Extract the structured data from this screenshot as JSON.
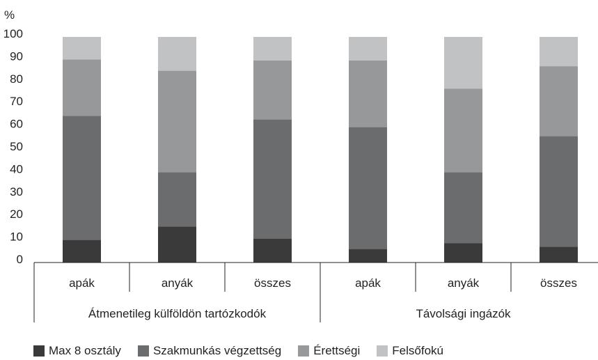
{
  "chart_data": {
    "type": "bar",
    "stacked": true,
    "ylabel": "%",
    "ylim": [
      0,
      100
    ],
    "yticks": [
      0,
      10,
      20,
      30,
      40,
      50,
      60,
      70,
      80,
      90,
      100
    ],
    "grid": false,
    "legend_position": "bottom",
    "categories": [
      "apák",
      "anyák",
      "összes",
      "apák",
      "anyák",
      "összes"
    ],
    "groups": [
      {
        "label": "Átmenetileg külföldön tartózkodók",
        "categories": [
          "apák",
          "anyák",
          "összes"
        ]
      },
      {
        "label": "Távolsági ingázók",
        "categories": [
          "apák",
          "anyák",
          "összes"
        ]
      }
    ],
    "series": [
      {
        "name": "Max 8 osztály",
        "color": "#3a3a3a",
        "values": [
          10,
          16,
          10.5,
          6,
          8.5,
          7
        ]
      },
      {
        "name": "Szakmunkás végzettség",
        "color": "#6b6c6e",
        "values": [
          55,
          24,
          53,
          54,
          31.5,
          49
        ]
      },
      {
        "name": "Érettségi",
        "color": "#97989a",
        "values": [
          25,
          45,
          26,
          29.5,
          37,
          31
        ]
      },
      {
        "name": "Felsőfokú",
        "color": "#c1c2c4",
        "values": [
          10,
          15,
          10.5,
          10.5,
          23,
          13
        ]
      }
    ]
  }
}
